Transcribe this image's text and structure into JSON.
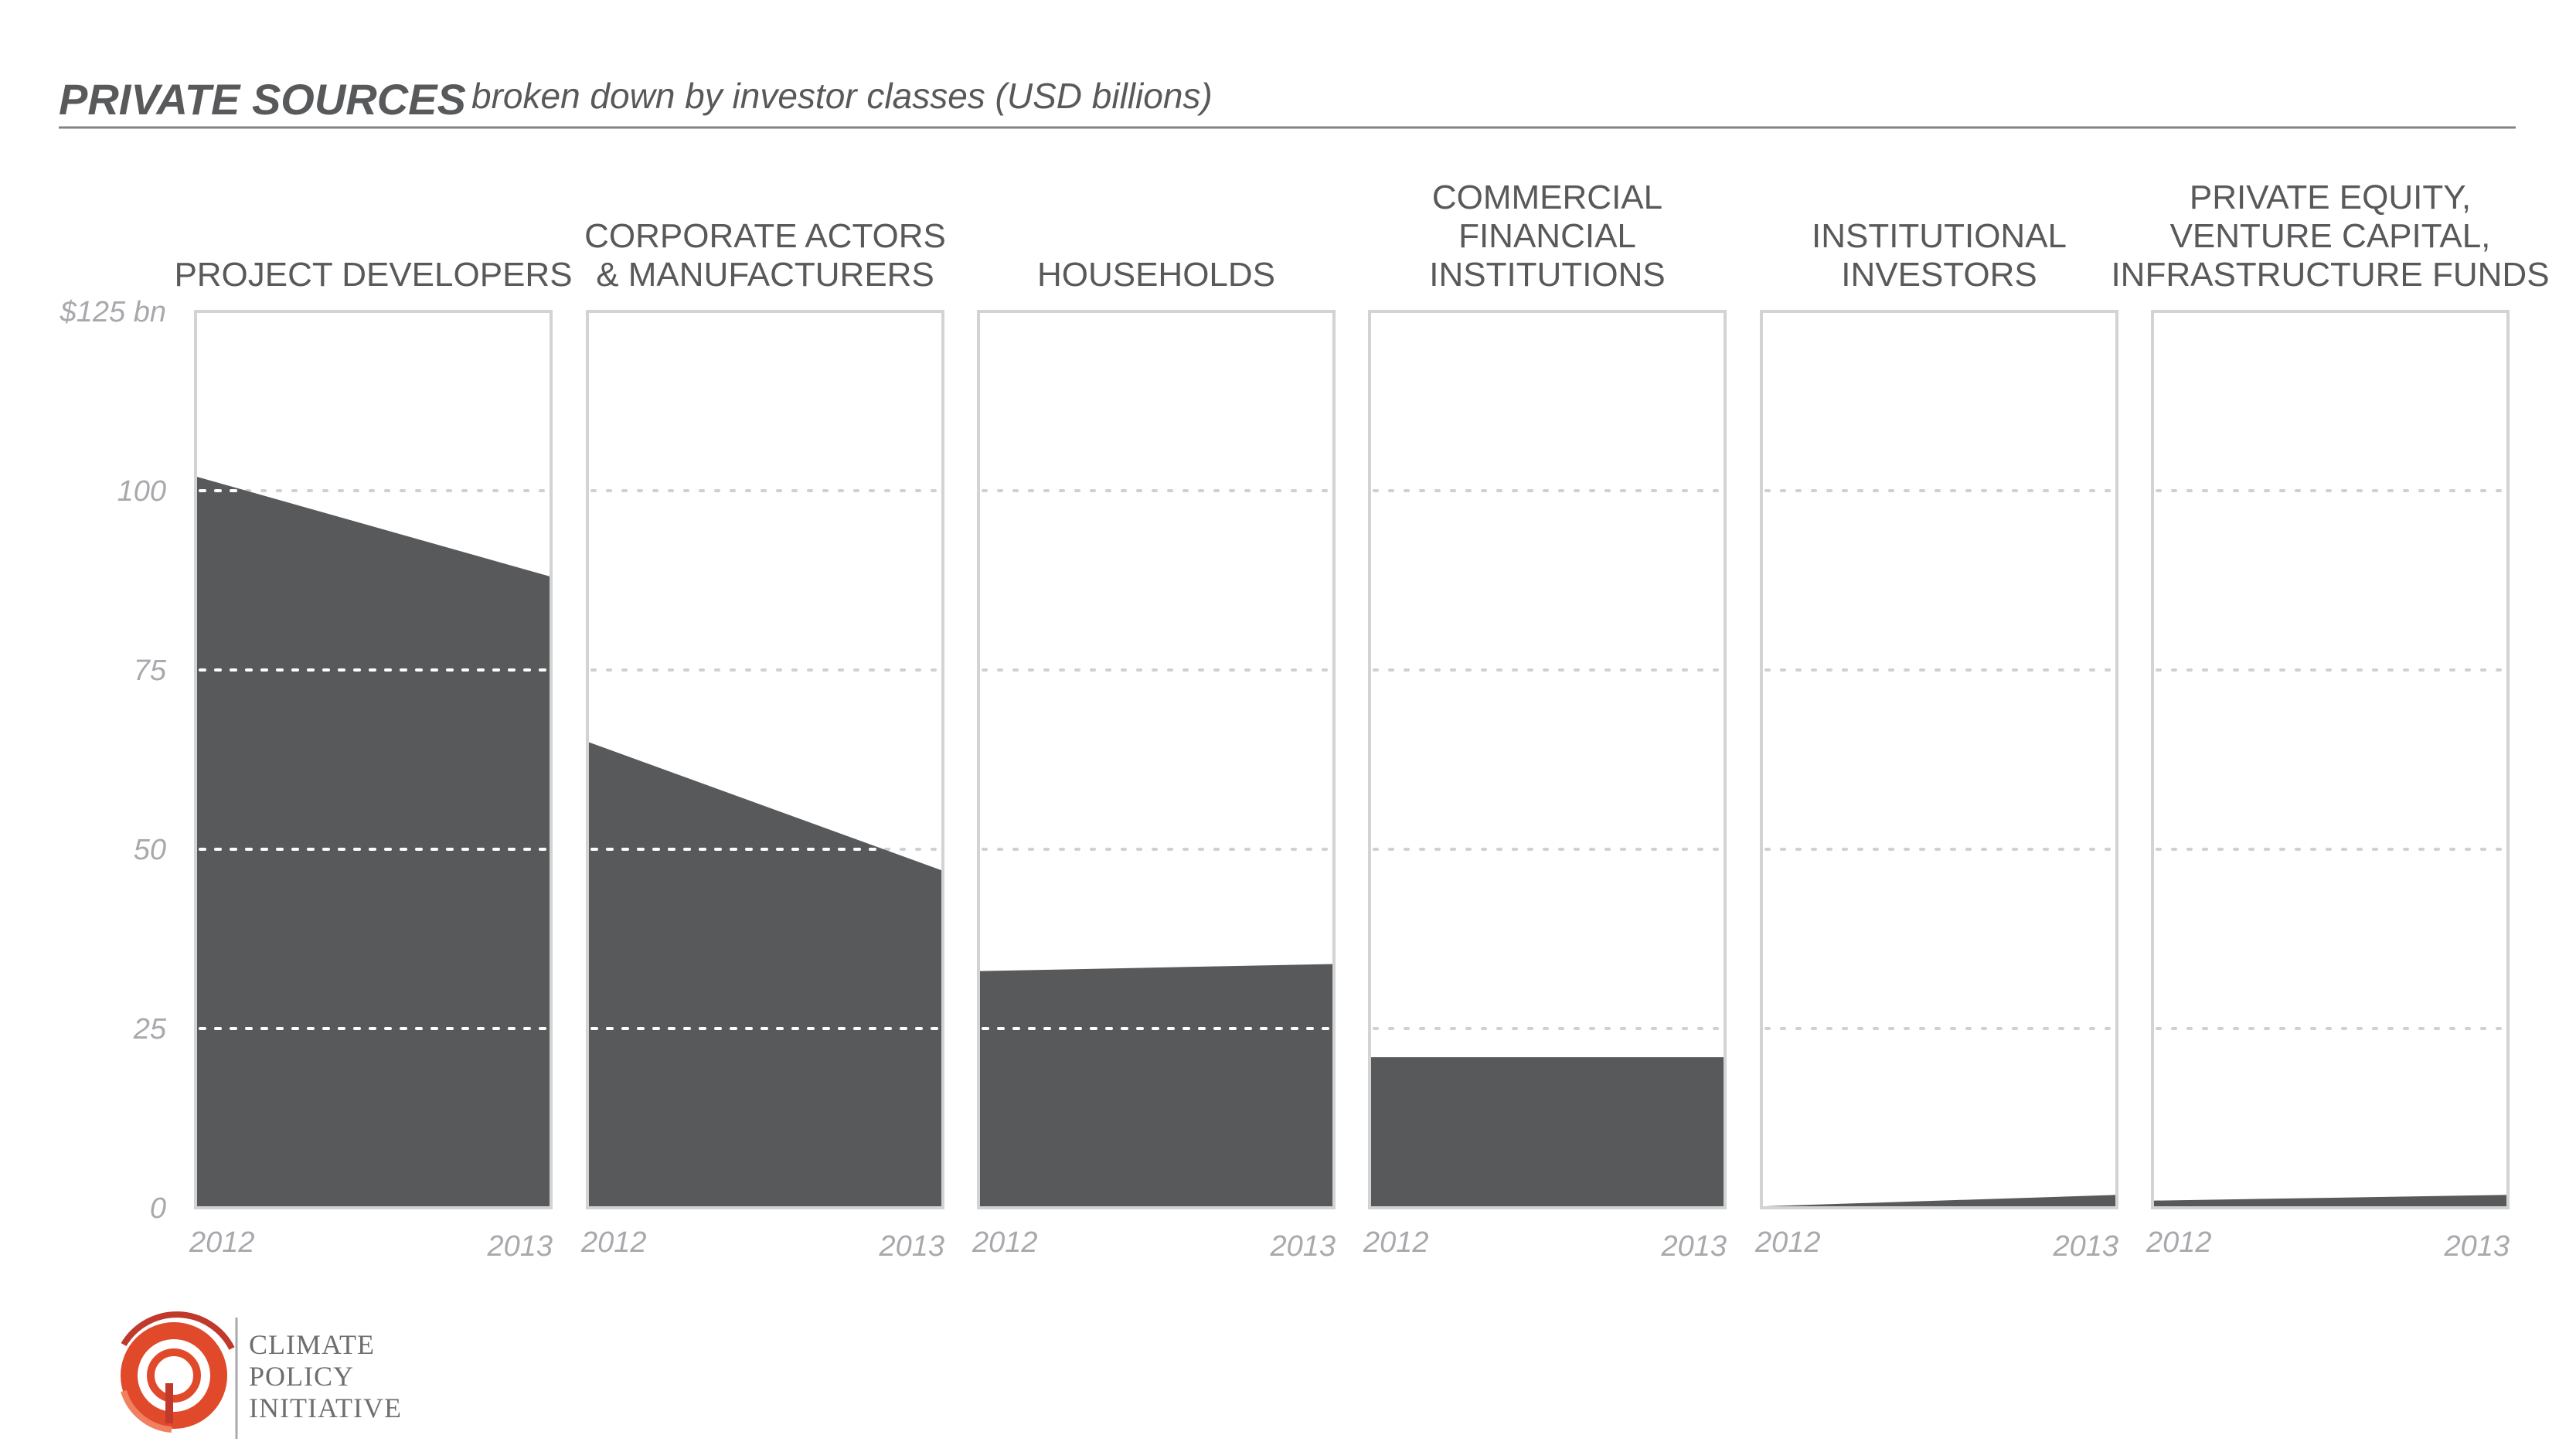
{
  "title": "PRIVATE SOURCES",
  "subtitle": "broken down by investor classes (USD billions)",
  "logo": {
    "lines": [
      "CLIMATE",
      "POLICY",
      "INITIATIVE"
    ],
    "accent_color": "#e04a2a"
  },
  "colors": {
    "area": "#58595b",
    "panel_border": "#d1d3d4",
    "grid": "#cfd0d2",
    "header_rule": "#808285"
  },
  "chart_data": {
    "type": "area",
    "title": "PRIVATE SOURCES",
    "subtitle": "broken down by investor classes (USD billions)",
    "x": [
      "2012",
      "2013"
    ],
    "ylim": [
      0,
      125
    ],
    "yticks": [
      {
        "value": 0,
        "label": "0"
      },
      {
        "value": 25,
        "label": "25"
      },
      {
        "value": 50,
        "label": "50"
      },
      {
        "value": 75,
        "label": "75"
      },
      {
        "value": 100,
        "label": "100"
      },
      {
        "value": 125,
        "label": "$125 bn"
      }
    ],
    "grid": true,
    "series": [
      {
        "name": [
          "PROJECT DEVELOPERS"
        ],
        "values": [
          102,
          88
        ]
      },
      {
        "name": [
          "CORPORATE ACTORS",
          "& MANUFACTURERS"
        ],
        "values": [
          65,
          47
        ]
      },
      {
        "name": [
          "HOUSEHOLDS"
        ],
        "values": [
          33,
          34
        ]
      },
      {
        "name": [
          "COMMERCIAL",
          "FINANCIAL",
          "INSTITUTIONS"
        ],
        "values": [
          21,
          21
        ]
      },
      {
        "name": [
          "INSTITUTIONAL",
          "INVESTORS"
        ],
        "values": [
          0.2,
          1.8
        ]
      },
      {
        "name": [
          "PRIVATE EQUITY,",
          "VENTURE CAPITAL,",
          "INFRASTRUCTURE FUNDS"
        ],
        "values": [
          1,
          1.8
        ]
      }
    ]
  }
}
